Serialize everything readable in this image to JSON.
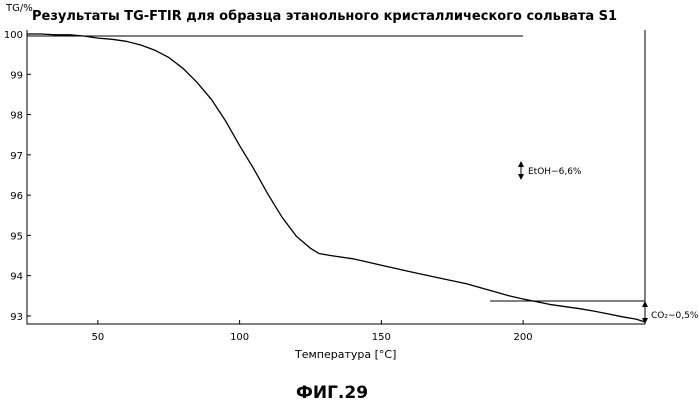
{
  "chart_data": {
    "type": "line",
    "title": "Результаты TG-FTIR для образца этанольного кристаллического сольвата S1",
    "ylabel": "TG/%",
    "xlabel": "Температура [°C]",
    "xlim": [
      25,
      243
    ],
    "ylim": [
      92.8,
      100.1
    ],
    "x_ticks": [
      "50",
      "100",
      "150",
      "200"
    ],
    "y_ticks": [
      "100",
      "99",
      "98",
      "97",
      "96",
      "95",
      "94",
      "93"
    ],
    "grid": false,
    "series": [
      {
        "x": [
          25,
          30,
          35,
          40,
          45,
          50,
          55,
          60,
          65,
          70,
          75,
          80,
          85,
          90,
          95,
          100,
          105,
          110,
          115,
          120,
          125,
          128,
          132,
          140,
          150,
          160,
          170,
          180,
          190,
          195,
          200,
          205,
          210,
          215,
          220,
          225,
          230,
          235,
          240,
          243
        ],
        "y": [
          100.0,
          100.0,
          99.98,
          99.98,
          99.95,
          99.9,
          99.87,
          99.82,
          99.73,
          99.6,
          99.42,
          99.15,
          98.8,
          98.38,
          97.85,
          97.23,
          96.65,
          96.02,
          95.45,
          94.98,
          94.68,
          94.55,
          94.5,
          94.42,
          94.26,
          94.1,
          93.95,
          93.8,
          93.6,
          93.5,
          93.42,
          93.35,
          93.28,
          93.23,
          93.18,
          93.12,
          93.05,
          92.98,
          92.92,
          92.85
        ]
      }
    ],
    "annotations": [
      {
        "label": "EtOH−6,6%"
      },
      {
        "label": "CO₂−0,5%"
      }
    ],
    "reference_lines_y": [
      99.95,
      93.37
    ]
  },
  "figure_label": "ФИГ.29"
}
